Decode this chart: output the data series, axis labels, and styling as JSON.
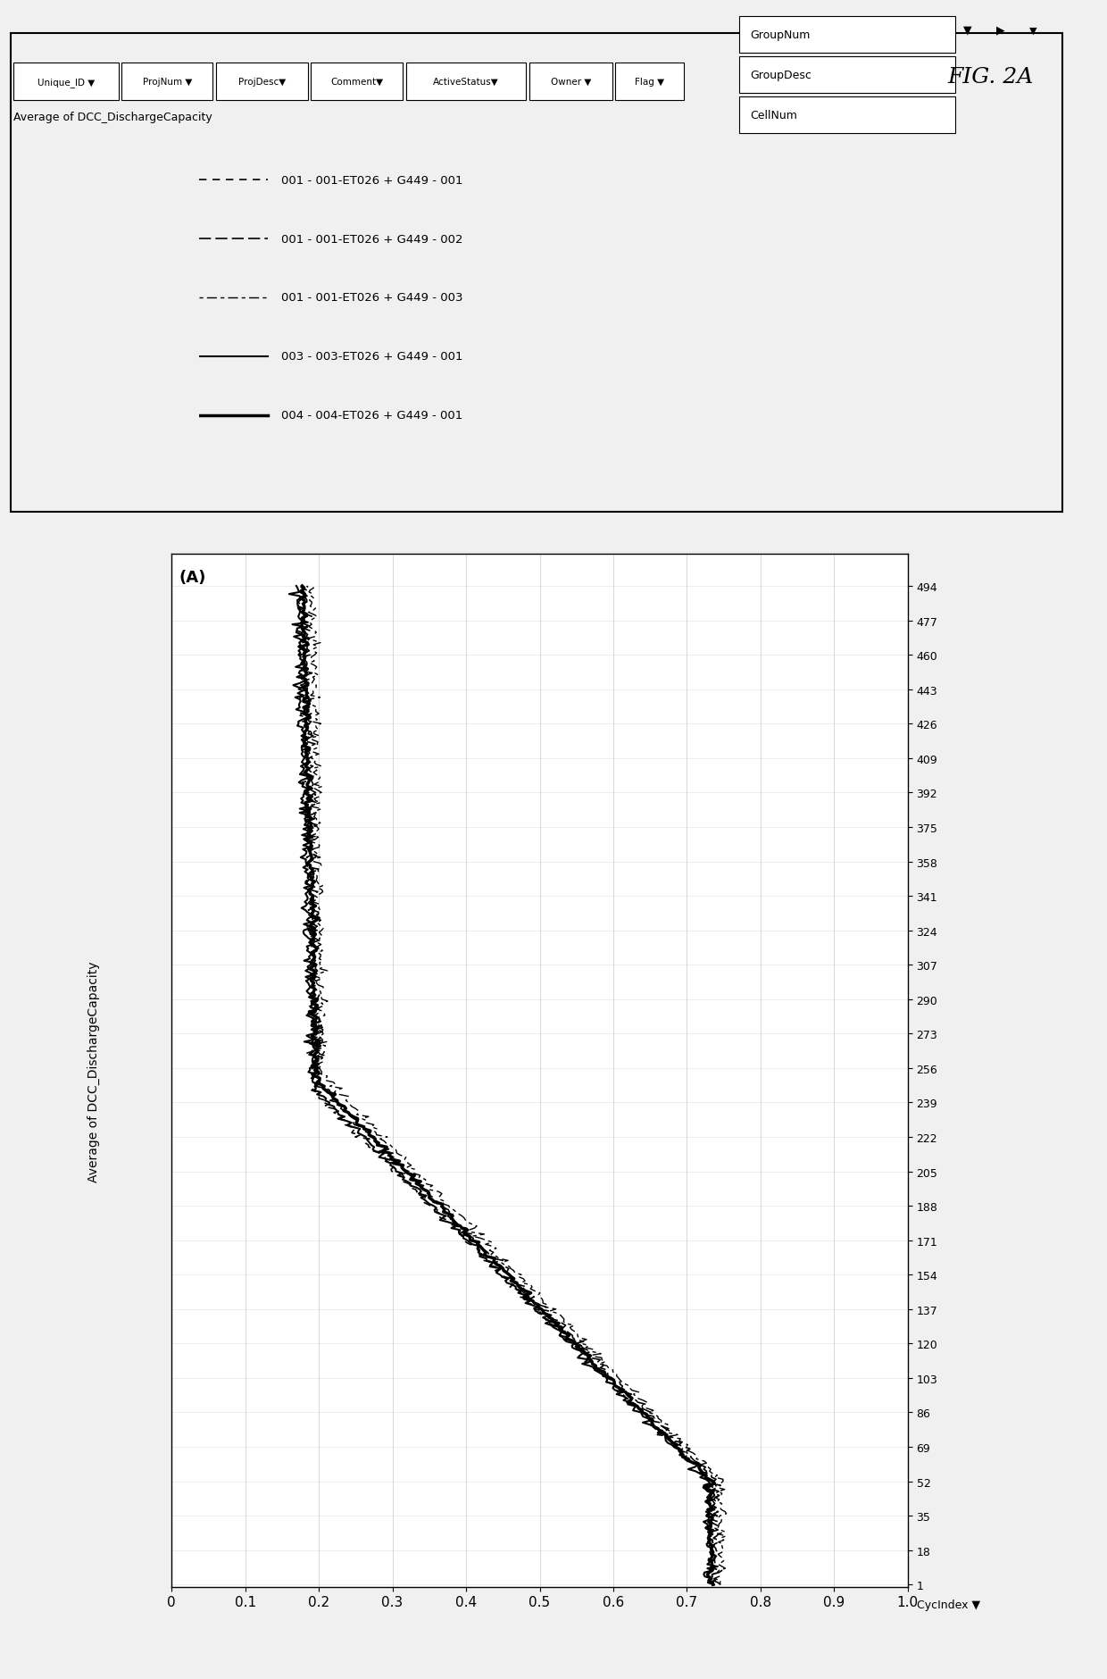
{
  "fig_label": "FIG. 2A",
  "panel_label": "(A)",
  "ylabel_chart": "Average of DCC_DischargeCapacity",
  "cyc_ticks": [
    1,
    18,
    35,
    52,
    69,
    86,
    103,
    120,
    137,
    154,
    171,
    188,
    205,
    222,
    239,
    256,
    273,
    290,
    307,
    324,
    341,
    358,
    375,
    392,
    409,
    426,
    443,
    460,
    477,
    494
  ],
  "cap_ticks": [
    0,
    0.1,
    0.2,
    0.3,
    0.4,
    0.5,
    0.6,
    0.7,
    0.8,
    0.9,
    1.0
  ],
  "header_cols": [
    "GroupNum",
    "GroupDesc",
    "CellNum"
  ],
  "toolbar_items": [
    "Unique_ID ▼",
    "ProjNum ▼",
    "ProjDesc▼",
    "Comment▼",
    "ActiveStatus▼",
    "Owner ▼",
    "Flag ▼"
  ],
  "row_label": "Average of DCC_DischargeCapacity",
  "legend_lines": [
    {
      "label": "001 - 001-ET026 + G449 - 001",
      "style": "dashed1",
      "lw": 1.2
    },
    {
      "label": "001 - 001-ET026 + G449 - 002",
      "style": "dashed2",
      "lw": 1.2
    },
    {
      "label": "001 - 001-ET026 + G449 - 003",
      "style": "dashed3",
      "lw": 1.0
    },
    {
      "label": "003 - 003-ET026 + G449 - 001",
      "style": "solid1",
      "lw": 1.5
    },
    {
      "label": "004 - 004-ET026 + G449 - 001",
      "style": "solid2",
      "lw": 2.5
    }
  ],
  "line_color": "#000000",
  "grid_color": "#bbbbbb",
  "bg_color": "#ffffff",
  "fig_bg": "#f0f0f0"
}
